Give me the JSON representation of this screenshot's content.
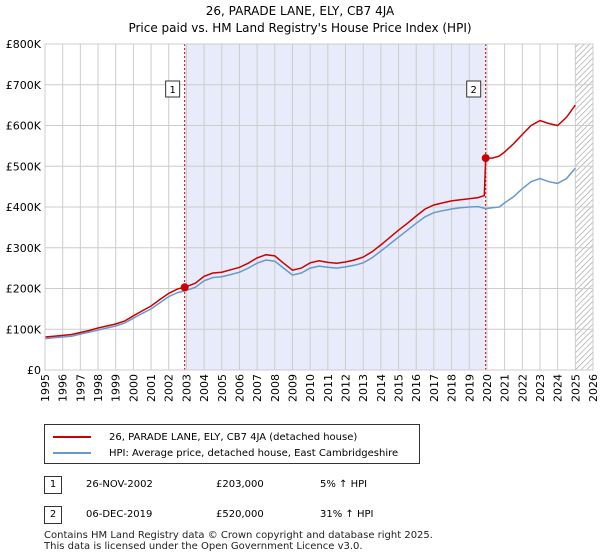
{
  "chart_data": {
    "type": "line",
    "title": "26, PARADE LANE, ELY, CB7 4JA",
    "subtitle": "Price paid vs. HM Land Registry's House Price Index (HPI)",
    "xlabel": "",
    "ylabel": "",
    "xlim": [
      1995,
      2026
    ],
    "ylim": [
      0,
      800000
    ],
    "x_ticks": [
      "1995",
      "1996",
      "1997",
      "1998",
      "1999",
      "2000",
      "2001",
      "2002",
      "2003",
      "2004",
      "2005",
      "2006",
      "2007",
      "2008",
      "2009",
      "2010",
      "2011",
      "2012",
      "2013",
      "2014",
      "2015",
      "2016",
      "2017",
      "2018",
      "2019",
      "2020",
      "2021",
      "2022",
      "2023",
      "2024",
      "2025",
      "2026"
    ],
    "y_ticks": [
      {
        "value": 0,
        "label": "£0"
      },
      {
        "value": 100000,
        "label": "£100K"
      },
      {
        "value": 200000,
        "label": "£200K"
      },
      {
        "value": 300000,
        "label": "£300K"
      },
      {
        "value": 400000,
        "label": "£400K"
      },
      {
        "value": 500000,
        "label": "£500K"
      },
      {
        "value": 600000,
        "label": "£600K"
      },
      {
        "value": 700000,
        "label": "£700K"
      },
      {
        "value": 800000,
        "label": "£800K"
      }
    ],
    "shaded_period": [
      2002.9,
      2019.93
    ],
    "future_hatch_from": 2025.0,
    "series": [
      {
        "name": "26, PARADE LANE, ELY, CB7 4JA (detached house)",
        "color": "#cc0000",
        "x": [
          1995.0,
          1995.5,
          1996.0,
          1996.5,
          1997.0,
          1997.5,
          1998.0,
          1998.5,
          1999.0,
          1999.5,
          2000.0,
          2000.5,
          2001.0,
          2001.5,
          2002.0,
          2002.5,
          2002.9,
          2003.5,
          2004.0,
          2004.5,
          2005.0,
          2005.5,
          2006.0,
          2006.5,
          2007.0,
          2007.5,
          2008.0,
          2008.5,
          2009.0,
          2009.5,
          2010.0,
          2010.5,
          2011.0,
          2011.5,
          2012.0,
          2012.5,
          2013.0,
          2013.5,
          2014.0,
          2014.5,
          2015.0,
          2015.5,
          2016.0,
          2016.5,
          2017.0,
          2017.5,
          2018.0,
          2018.5,
          2019.0,
          2019.5,
          2019.85,
          2019.93,
          2020.3,
          2020.7,
          2021.0,
          2021.5,
          2022.0,
          2022.5,
          2023.0,
          2023.5,
          2024.0,
          2024.5,
          2025.0
        ],
        "values": [
          81000,
          83000,
          85000,
          87000,
          92000,
          97000,
          103000,
          108000,
          113000,
          120000,
          133000,
          145000,
          157000,
          173000,
          188000,
          199000,
          203000,
          213000,
          230000,
          238000,
          240000,
          246000,
          252000,
          262000,
          275000,
          283000,
          280000,
          262000,
          245000,
          250000,
          263000,
          268000,
          264000,
          262000,
          265000,
          270000,
          277000,
          290000,
          307000,
          325000,
          343000,
          360000,
          378000,
          395000,
          405000,
          410000,
          415000,
          418000,
          420000,
          423000,
          428000,
          520000,
          520000,
          525000,
          535000,
          555000,
          578000,
          600000,
          612000,
          605000,
          600000,
          620000,
          650000
        ]
      },
      {
        "name": "HPI: Average price, detached house, East Cambridgeshire",
        "color": "#6699cc",
        "x": [
          1995.0,
          1995.5,
          1996.0,
          1996.5,
          1997.0,
          1997.5,
          1998.0,
          1998.5,
          1999.0,
          1999.5,
          2000.0,
          2000.5,
          2001.0,
          2001.5,
          2002.0,
          2002.5,
          2002.9,
          2003.5,
          2004.0,
          2004.5,
          2005.0,
          2005.5,
          2006.0,
          2006.5,
          2007.0,
          2007.5,
          2008.0,
          2008.5,
          2009.0,
          2009.5,
          2010.0,
          2010.5,
          2011.0,
          2011.5,
          2012.0,
          2012.5,
          2013.0,
          2013.5,
          2014.0,
          2014.5,
          2015.0,
          2015.5,
          2016.0,
          2016.5,
          2017.0,
          2017.5,
          2018.0,
          2018.5,
          2019.0,
          2019.5,
          2019.93,
          2020.3,
          2020.7,
          2021.0,
          2021.5,
          2022.0,
          2022.5,
          2023.0,
          2023.5,
          2024.0,
          2024.5,
          2025.0
        ],
        "values": [
          77000,
          79000,
          81000,
          83000,
          88000,
          93000,
          98000,
          103000,
          108000,
          115000,
          127000,
          139000,
          150000,
          165000,
          180000,
          190000,
          194000,
          203000,
          219000,
          227000,
          229000,
          234000,
          240000,
          250000,
          262000,
          270000,
          267000,
          250000,
          233000,
          238000,
          250000,
          255000,
          252000,
          250000,
          253000,
          257000,
          263000,
          275000,
          292000,
          309000,
          326000,
          343000,
          360000,
          376000,
          386000,
          391000,
          395000,
          398000,
          400000,
          401000,
          396000,
          398000,
          400000,
          410000,
          425000,
          445000,
          462000,
          470000,
          462000,
          458000,
          470000,
          495000
        ]
      }
    ],
    "sales": [
      {
        "marker": "1",
        "x": 2002.9,
        "price": 203000
      },
      {
        "marker": "2",
        "x": 2019.93,
        "price": 520000
      }
    ]
  },
  "legend": {
    "property_label": "26, PARADE LANE, ELY, CB7 4JA (detached house)",
    "hpi_label": "HPI: Average price, detached house, East Cambridgeshire"
  },
  "sales_table": [
    {
      "num": "1",
      "date": "26-NOV-2002",
      "price": "£203,000",
      "hpi": "5% ↑ HPI"
    },
    {
      "num": "2",
      "date": "06-DEC-2019",
      "price": "£520,000",
      "hpi": "31% ↑ HPI"
    }
  ],
  "footer": {
    "line1": "Contains HM Land Registry data © Crown copyright and database right 2025.",
    "line2": "This data is licensed under the Open Government Licence v3.0."
  },
  "colors": {
    "property": "#cc0000",
    "hpi": "#6699cc",
    "shade": "#e8ecfa",
    "grid": "#cccccc"
  }
}
